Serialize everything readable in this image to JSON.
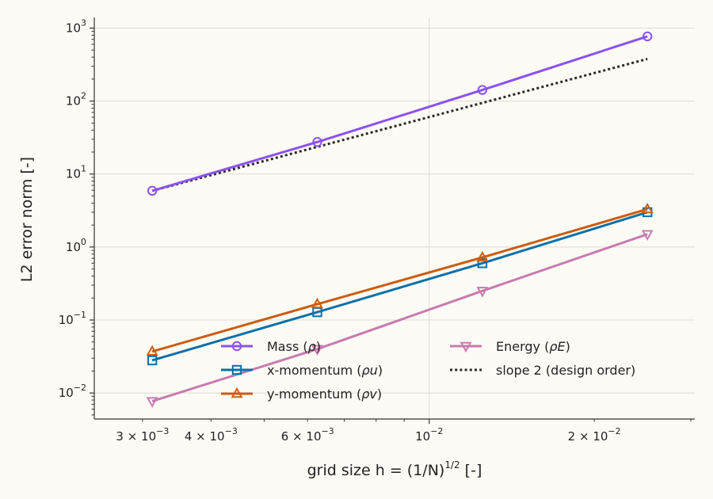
{
  "chart_data": {
    "type": "line",
    "x_scale": "log",
    "y_scale": "log",
    "xlim": [
      0.00245,
      0.0305
    ],
    "ylim": [
      0.0044,
      1400
    ],
    "grid": true,
    "legend_position": "lower-center",
    "xlabel": {
      "main": "grid size  h = (1/N)",
      "sup": "1/2",
      "unit": " [-]"
    },
    "ylabel": "L2 error norm [-]",
    "x_major_ticks": [
      {
        "value": 0.01,
        "mant": "",
        "exp": "−2"
      }
    ],
    "x_minor_ticks": [
      {
        "value": 0.003,
        "mant": "3",
        "exp": "−3"
      },
      {
        "value": 0.004,
        "mant": "4",
        "exp": "−3"
      },
      {
        "value": 0.005,
        "mant": "",
        "exp": ""
      },
      {
        "value": 0.006,
        "mant": "6",
        "exp": "−3"
      },
      {
        "value": 0.007,
        "mant": "",
        "exp": ""
      },
      {
        "value": 0.008,
        "mant": "",
        "exp": ""
      },
      {
        "value": 0.009,
        "mant": "",
        "exp": ""
      },
      {
        "value": 0.02,
        "mant": "2",
        "exp": "−2"
      },
      {
        "value": 0.03,
        "mant": "",
        "exp": ""
      }
    ],
    "y_major_ticks": [
      {
        "value": 0.01,
        "exp": "−2"
      },
      {
        "value": 0.1,
        "exp": "−1"
      },
      {
        "value": 1,
        "exp": "0"
      },
      {
        "value": 10,
        "exp": "1"
      },
      {
        "value": 100,
        "exp": "2"
      },
      {
        "value": 1000,
        "exp": "3"
      }
    ],
    "x": [
      0.003125,
      0.00625,
      0.0125,
      0.025
    ],
    "series": [
      {
        "name": "Mass (",
        "sym": "ρ",
        "tail": ")",
        "color": "#8b52f0",
        "marker": "circle",
        "style": "solid",
        "values": [
          5.9,
          27.5,
          142,
          770
        ]
      },
      {
        "name": "x-momentum (",
        "sym": "ρu",
        "tail": ")",
        "color": "#0a70a8",
        "marker": "square",
        "style": "solid",
        "values": [
          0.028,
          0.128,
          0.6,
          3.0
        ]
      },
      {
        "name": "y-momentum (",
        "sym": "ρv",
        "tail": ")",
        "color": "#cc5c10",
        "marker": "triangle-up",
        "style": "solid",
        "values": [
          0.037,
          0.165,
          0.72,
          3.3
        ]
      },
      {
        "name": "Energy (",
        "sym": "ρE",
        "tail": ")",
        "color": "#c87ab0",
        "marker": "triangle-down",
        "style": "solid",
        "values": [
          0.0077,
          0.04,
          0.25,
          1.5
        ]
      },
      {
        "name": "slope 2 (design order)",
        "sym": "",
        "tail": "",
        "color": "#2a2a2a",
        "marker": "none",
        "style": "dotted",
        "values": [
          5.9,
          23.6,
          94.4,
          377.6
        ]
      }
    ]
  }
}
